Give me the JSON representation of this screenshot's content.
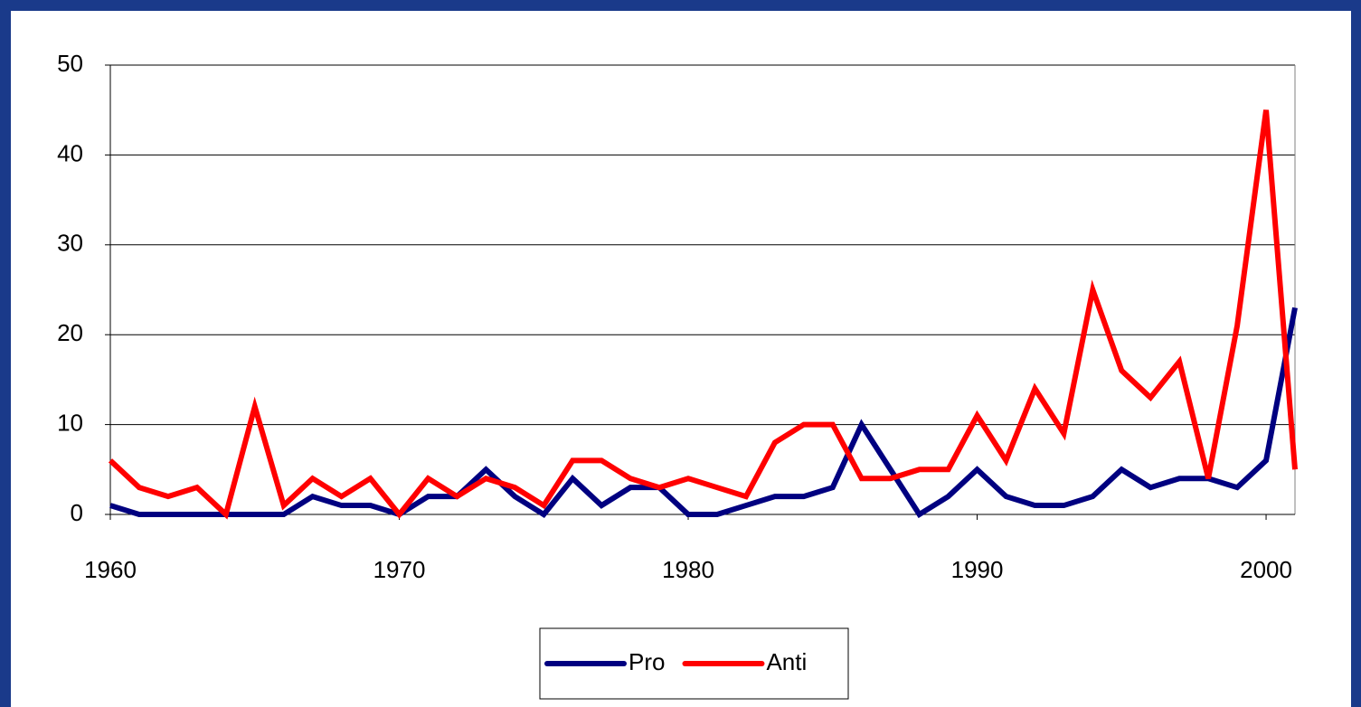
{
  "chart_data": {
    "type": "line",
    "x": [
      1960,
      1961,
      1962,
      1963,
      1964,
      1965,
      1966,
      1967,
      1968,
      1969,
      1970,
      1971,
      1972,
      1973,
      1974,
      1975,
      1976,
      1977,
      1978,
      1979,
      1980,
      1981,
      1982,
      1983,
      1984,
      1985,
      1986,
      1987,
      1988,
      1989,
      1990,
      1991,
      1992,
      1993,
      1994,
      1995,
      1996,
      1997,
      1998,
      1999,
      2000,
      2001
    ],
    "series": [
      {
        "name": "Pro",
        "color": "#000080",
        "values": [
          1,
          0,
          0,
          0,
          0,
          0,
          0,
          2,
          1,
          1,
          0,
          2,
          2,
          5,
          2,
          0,
          4,
          1,
          3,
          3,
          0,
          0,
          1,
          2,
          2,
          3,
          10,
          5,
          0,
          2,
          5,
          2,
          1,
          1,
          2,
          5,
          3,
          4,
          4,
          3,
          6,
          23
        ]
      },
      {
        "name": "Anti",
        "color": "#ff0000",
        "values": [
          6,
          3,
          2,
          3,
          0,
          12,
          1,
          4,
          2,
          4,
          0,
          4,
          2,
          4,
          3,
          1,
          6,
          6,
          4,
          3,
          4,
          3,
          2,
          8,
          10,
          10,
          4,
          4,
          5,
          5,
          11,
          6,
          14,
          9,
          25,
          16,
          13,
          17,
          4,
          21,
          45,
          5
        ]
      }
    ],
    "xlim": [
      1960,
      2001
    ],
    "xticks": [
      1960,
      1970,
      1980,
      1990,
      2000
    ],
    "ylim": [
      0,
      50
    ],
    "yticks": [
      0,
      10,
      20,
      30,
      40,
      50
    ],
    "grid": true,
    "legend": "bottom"
  }
}
